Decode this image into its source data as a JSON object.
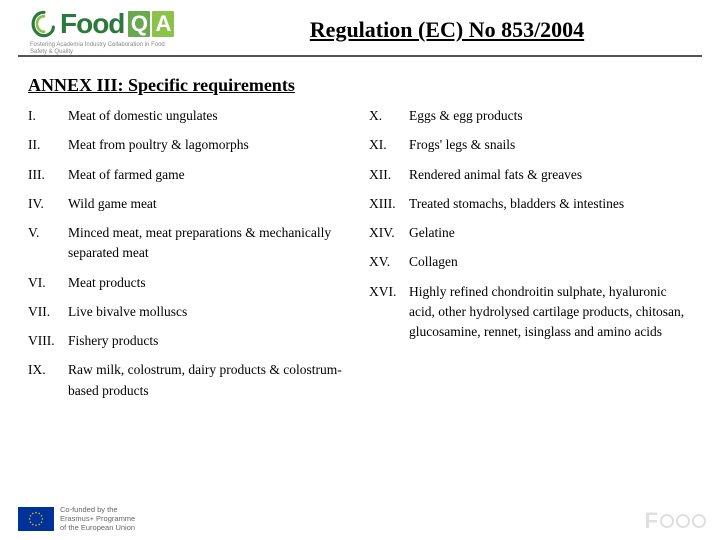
{
  "logo": {
    "brand_text": "Food",
    "qa_q": "Q",
    "qa_a": "A",
    "tagline": "Fostering Academia Industry Collaboration in Food Safety & Quality"
  },
  "title": "Regulation (EC) No 853/2004",
  "annex_heading": "ANNEX III: Specific requirements",
  "left_items": [
    {
      "n": "I.",
      "t": "Meat of domestic ungulates"
    },
    {
      "n": "II.",
      "t": "Meat from poultry & lagomorphs"
    },
    {
      "n": "III.",
      "t": "Meat of farmed game"
    },
    {
      "n": "IV.",
      "t": "Wild game meat"
    },
    {
      "n": "V.",
      "t": "Minced meat, meat preparations & mechanically separated meat"
    },
    {
      "n": "VI.",
      "t": "Meat products"
    },
    {
      "n": "VII.",
      "t": "Live bivalve molluscs"
    },
    {
      "n": "VIII.",
      "t": "Fishery products"
    },
    {
      "n": "IX.",
      "t": "Raw milk, colostrum, dairy products & colostrum-based products"
    }
  ],
  "right_items": [
    {
      "n": "X.",
      "t": "Eggs & egg products"
    },
    {
      "n": "XI.",
      "t": "Frogs' legs & snails"
    },
    {
      "n": "XII.",
      "t": "Rendered animal fats & greaves"
    },
    {
      "n": "XIII.",
      "t": "Treated stomachs, bladders & intestines"
    },
    {
      "n": "XIV.",
      "t": "Gelatine"
    },
    {
      "n": "XV.",
      "t": "Collagen"
    },
    {
      "n": "XVI.",
      "t": "Highly refined chondroitin sulphate, hyaluronic acid, other hydrolysed cartilage products, chitosan, glucosamine, rennet, isinglass and amino acids"
    }
  ],
  "footer": {
    "line1": "Co-funded by the",
    "line2": "Erasmus+ Programme",
    "line3": "of the European Union"
  },
  "colors": {
    "brand_green": "#2b7a3c",
    "q_bg": "#6aa84f",
    "a_bg": "#8bc34a",
    "eu_blue": "#003399",
    "eu_gold": "#ffcc00",
    "rule": "#555555"
  }
}
